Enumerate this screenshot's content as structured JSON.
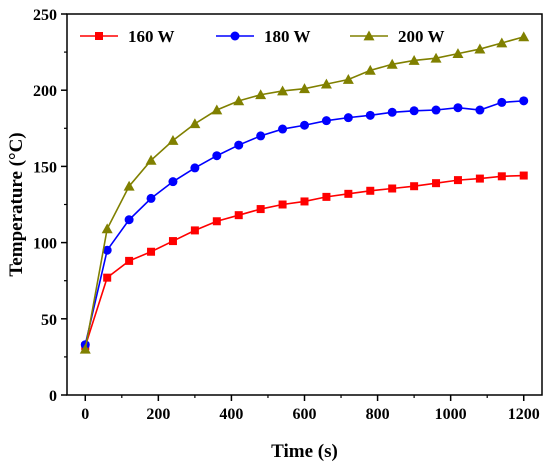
{
  "chart_data": {
    "type": "line",
    "xlabel": "Time (s)",
    "ylabel": "Temperature (°C)",
    "xlim": [
      -50,
      1250
    ],
    "ylim": [
      0,
      250
    ],
    "xticks": [
      0,
      200,
      400,
      600,
      800,
      1000,
      1200
    ],
    "yticks": [
      0,
      50,
      100,
      150,
      200,
      250
    ],
    "legend_position": "top",
    "x": [
      0,
      60,
      120,
      180,
      240,
      300,
      360,
      420,
      480,
      540,
      600,
      660,
      720,
      780,
      840,
      900,
      960,
      1020,
      1080,
      1140,
      1200
    ],
    "series": [
      {
        "name": "160 W",
        "color": "#ff0000",
        "marker": "square",
        "values": [
          32,
          77,
          88,
          94,
          101,
          108,
          114,
          118,
          122,
          125,
          127,
          130,
          132,
          134,
          135.5,
          137,
          139,
          141,
          142,
          143.5,
          144
        ]
      },
      {
        "name": "180 W",
        "color": "#0000ff",
        "marker": "circle",
        "values": [
          33,
          95,
          115,
          129,
          140,
          149,
          157,
          164,
          170,
          174.5,
          177,
          180,
          182,
          183.5,
          185.5,
          186.5,
          187,
          188.5,
          187,
          192,
          193
        ]
      },
      {
        "name": "200 W",
        "color": "#808000",
        "marker": "triangle",
        "values": [
          30,
          109,
          137,
          154,
          167,
          178,
          187,
          193,
          197,
          199.5,
          201,
          204,
          207,
          213,
          217,
          219.5,
          221,
          224,
          227,
          231,
          235
        ]
      }
    ]
  }
}
